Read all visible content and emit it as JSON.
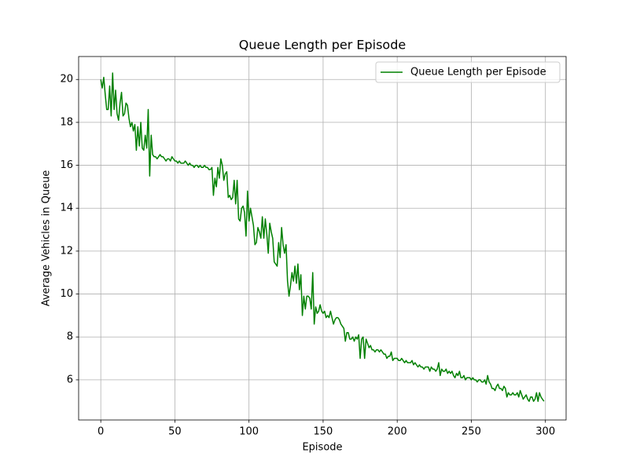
{
  "chart_data": {
    "type": "line",
    "title": "Queue Length per Episode",
    "xlabel": "Episode",
    "ylabel": "Average Vehicles in Queue",
    "x": [
      0,
      1,
      2,
      3,
      4,
      5,
      6,
      7,
      8,
      9,
      10,
      11,
      12,
      13,
      14,
      15,
      16,
      17,
      18,
      19,
      20,
      21,
      22,
      23,
      24,
      25,
      26,
      27,
      28,
      29,
      30,
      31,
      32,
      33,
      34,
      35,
      36,
      37,
      38,
      39,
      40,
      41,
      42,
      43,
      44,
      45,
      46,
      47,
      48,
      49,
      50,
      51,
      52,
      53,
      54,
      55,
      56,
      57,
      58,
      59,
      60,
      61,
      62,
      63,
      64,
      65,
      66,
      67,
      68,
      69,
      70,
      71,
      72,
      73,
      74,
      75,
      76,
      77,
      78,
      79,
      80,
      81,
      82,
      83,
      84,
      85,
      86,
      87,
      88,
      89,
      90,
      91,
      92,
      93,
      94,
      95,
      96,
      97,
      98,
      99,
      100,
      101,
      102,
      103,
      104,
      105,
      106,
      107,
      108,
      109,
      110,
      111,
      112,
      113,
      114,
      115,
      116,
      117,
      118,
      119,
      120,
      121,
      122,
      123,
      124,
      125,
      126,
      127,
      128,
      129,
      130,
      131,
      132,
      133,
      134,
      135,
      136,
      137,
      138,
      139,
      140,
      141,
      142,
      143,
      144,
      145,
      146,
      147,
      148,
      149,
      150,
      151,
      152,
      153,
      154,
      155,
      156,
      157,
      158,
      159,
      160,
      161,
      162,
      163,
      164,
      165,
      166,
      167,
      168,
      169,
      170,
      171,
      172,
      173,
      174,
      175,
      176,
      177,
      178,
      179,
      180,
      181,
      182,
      183,
      184,
      185,
      186,
      187,
      188,
      189,
      190,
      191,
      192,
      193,
      194,
      195,
      196,
      197,
      198,
      199,
      200,
      201,
      202,
      203,
      204,
      205,
      206,
      207,
      208,
      209,
      210,
      211,
      212,
      213,
      214,
      215,
      216,
      217,
      218,
      219,
      220,
      221,
      222,
      223,
      224,
      225,
      226,
      227,
      228,
      229,
      230,
      231,
      232,
      233,
      234,
      235,
      236,
      237,
      238,
      239,
      240,
      241,
      242,
      243,
      244,
      245,
      246,
      247,
      248,
      249,
      250,
      251,
      252,
      253,
      254,
      255,
      256,
      257,
      258,
      259,
      260,
      261,
      262,
      263,
      264,
      265,
      266,
      267,
      268,
      269,
      270,
      271,
      272,
      273,
      274,
      275,
      276,
      277,
      278,
      279,
      280,
      281,
      282,
      283,
      284,
      285,
      286,
      287,
      288,
      289,
      290,
      291,
      292,
      293,
      294,
      295,
      296,
      297,
      298,
      299
    ],
    "series": [
      {
        "name": "Queue Length per Episode",
        "color": "#008000",
        "values": [
          20.0,
          19.6,
          20.1,
          19.3,
          18.6,
          18.6,
          19.7,
          18.3,
          20.3,
          18.6,
          19.5,
          18.4,
          18.1,
          18.9,
          19.4,
          18.3,
          18.4,
          18.9,
          18.8,
          18.2,
          17.8,
          18.0,
          17.6,
          17.9,
          16.7,
          17.8,
          16.9,
          18.0,
          16.8,
          16.7,
          17.4,
          16.8,
          18.6,
          15.5,
          17.4,
          16.5,
          16.4,
          16.4,
          16.3,
          16.4,
          16.5,
          16.4,
          16.4,
          16.3,
          16.2,
          16.3,
          16.3,
          16.2,
          16.4,
          16.3,
          16.2,
          16.2,
          16.1,
          16.2,
          16.1,
          16.1,
          16.1,
          16.2,
          16.1,
          16.0,
          16.1,
          16.0,
          16.0,
          15.9,
          16.0,
          16.0,
          15.9,
          16.0,
          15.9,
          15.9,
          16.0,
          15.9,
          15.9,
          15.8,
          15.8,
          15.9,
          14.6,
          15.4,
          15.0,
          15.9,
          15.4,
          16.3,
          16.0,
          15.3,
          15.6,
          15.7,
          14.5,
          14.6,
          14.4,
          14.5,
          15.3,
          14.2,
          15.3,
          13.5,
          13.4,
          14.0,
          14.1,
          13.8,
          12.7,
          14.8,
          13.4,
          14.0,
          13.6,
          13.2,
          12.3,
          12.4,
          13.1,
          12.9,
          12.6,
          13.6,
          12.6,
          13.5,
          12.8,
          11.9,
          13.3,
          12.9,
          12.6,
          11.5,
          11.4,
          11.3,
          12.4,
          11.7,
          13.1,
          12.3,
          11.9,
          12.3,
          10.6,
          9.9,
          10.4,
          11.0,
          10.6,
          11.3,
          10.5,
          11.4,
          10.2,
          10.9,
          9.0,
          9.9,
          9.3,
          9.9,
          9.9,
          9.8,
          9.3,
          11.0,
          8.6,
          9.4,
          9.1,
          9.2,
          9.5,
          9.2,
          9.1,
          9.2,
          8.9,
          9.0,
          8.9,
          9.2,
          8.9,
          8.6,
          8.8,
          8.9,
          8.9,
          8.8,
          8.6,
          8.5,
          8.4,
          7.8,
          8.2,
          8.2,
          7.9,
          7.9,
          8.0,
          7.8,
          8.0,
          7.9,
          8.1,
          7.0,
          7.9,
          8.0,
          7.0,
          7.9,
          7.7,
          7.5,
          7.6,
          7.4,
          7.4,
          7.3,
          7.4,
          7.4,
          7.3,
          7.4,
          7.3,
          7.2,
          7.2,
          7.0,
          7.1,
          7.1,
          7.3,
          6.9,
          7.0,
          7.0,
          7.0,
          6.9,
          6.9,
          7.0,
          6.9,
          6.8,
          6.9,
          6.8,
          6.8,
          6.8,
          6.9,
          6.7,
          6.8,
          6.7,
          6.6,
          6.7,
          6.6,
          6.6,
          6.5,
          6.6,
          6.6,
          6.6,
          6.4,
          6.6,
          6.5,
          6.5,
          6.4,
          6.5,
          6.8,
          6.2,
          6.5,
          6.4,
          6.4,
          6.5,
          6.3,
          6.4,
          6.3,
          6.4,
          6.2,
          6.1,
          6.3,
          6.2,
          6.4,
          6.1,
          6.1,
          6.2,
          6.0,
          6.1,
          6.1,
          6.1,
          6.0,
          6.1,
          6.0,
          6.0,
          5.9,
          6.0,
          6.0,
          5.9,
          5.9,
          6.0,
          5.8,
          6.2,
          5.9,
          5.8,
          5.6,
          5.6,
          5.5,
          5.7,
          5.8,
          5.6,
          5.6,
          5.5,
          5.7,
          5.6,
          5.2,
          5.4,
          5.3,
          5.3,
          5.4,
          5.3,
          5.3,
          5.4,
          5.2,
          5.5,
          5.3,
          5.1,
          5.2,
          5.3,
          5.1,
          5.0,
          5.2,
          5.2,
          5.0,
          5.1,
          5.4,
          5.0,
          5.4,
          5.2,
          5.1,
          5.0
        ]
      }
    ],
    "xlim": [
      -14.95,
      313.95
    ],
    "xticks": [
      0,
      50,
      100,
      150,
      200,
      250,
      300
    ],
    "ylim": [
      4.13,
      21.07
    ],
    "yticks": [
      6,
      8,
      10,
      12,
      14,
      16,
      18,
      20
    ],
    "grid": true,
    "legend": "upper right"
  }
}
